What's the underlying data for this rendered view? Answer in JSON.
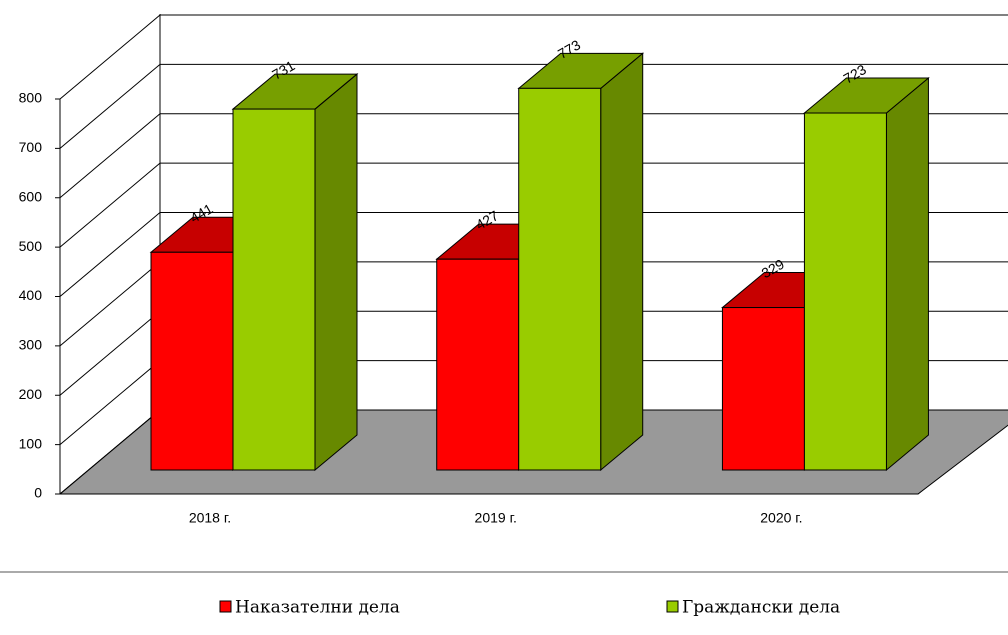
{
  "chart_data": {
    "type": "bar3d",
    "categories": [
      "2018 г.",
      "2019 г.",
      "2020 г."
    ],
    "series": [
      {
        "name": "Наказателни дела",
        "color": "#ff0000",
        "values": [
          441,
          427,
          329
        ]
      },
      {
        "name": "Граждански дела",
        "color": "#99cc00",
        "values": [
          731,
          773,
          723
        ]
      }
    ],
    "ylim": [
      0,
      800
    ],
    "yticks": [
      0,
      100,
      200,
      300,
      400,
      500,
      600,
      700,
      800
    ],
    "grid": true
  }
}
